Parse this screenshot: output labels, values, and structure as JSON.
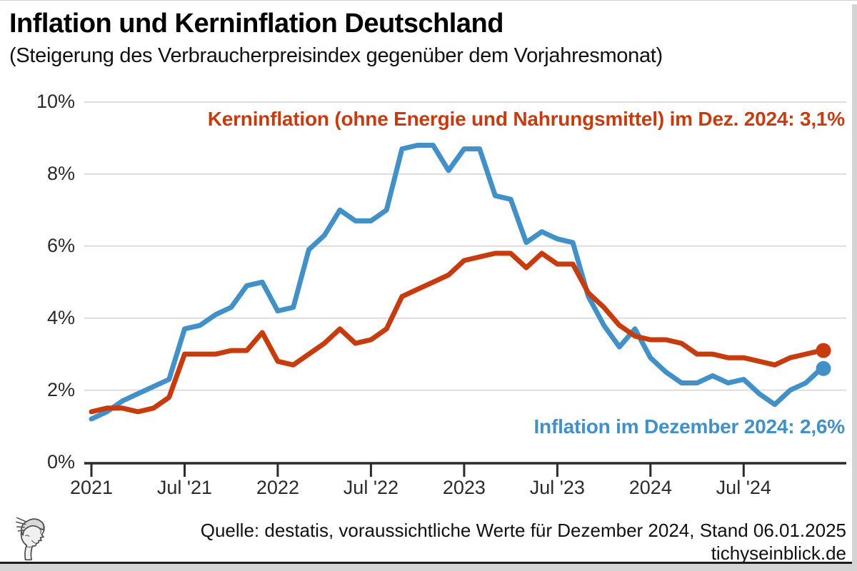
{
  "title": "Inflation und Kerninflation Deutschland",
  "subtitle": "(Steigerung des Verbraucherpreisindex gegenüber dem Vorjahresmonat)",
  "annotations": {
    "core": {
      "text": "Kerninflation (ohne Energie und Nahrungsmittel) im Dez. 2024: 3,1%"
    },
    "headline": {
      "text": "Inflation im Dezember 2024: 2,6%"
    }
  },
  "footer": {
    "source": "Quelle: destatis, voraussichtliche Werte für Dezember 2024, Stand 06.01.2025",
    "site": "tichyseinblick.de"
  },
  "colors": {
    "inflation_blue": "#4190c8",
    "core_red": "#c73c0f",
    "gridline": "#dcdcdc",
    "axis": "#2b2b2b"
  },
  "chart_data": {
    "type": "line",
    "title": "Inflation und Kerninflation Deutschland",
    "subtitle": "(Steigerung des Verbraucherpreisindex gegenüber dem Vorjahresmonat)",
    "x_start": "Jan 2021",
    "x_freq": "monthly",
    "x_ticks": [
      {
        "label": "2021",
        "month_index": 0
      },
      {
        "label": "Jul '21",
        "month_index": 6
      },
      {
        "label": "2022",
        "month_index": 12
      },
      {
        "label": "Jul '22",
        "month_index": 18
      },
      {
        "label": "2023",
        "month_index": 24
      },
      {
        "label": "Jul '23",
        "month_index": 30
      },
      {
        "label": "2024",
        "month_index": 36
      },
      {
        "label": "Jul '24",
        "month_index": 42
      }
    ],
    "y_ticks": [
      0,
      2,
      4,
      6,
      8,
      10
    ],
    "y_tick_suffix": "%",
    "ylim": [
      0,
      10.4
    ],
    "grid": "horizontal",
    "legend": "none",
    "series": [
      {
        "name": "Inflation",
        "color": "#4190c8",
        "end_dot": true,
        "last_value_label": "2,6%",
        "values": [
          1.2,
          1.4,
          1.7,
          1.9,
          2.1,
          2.3,
          3.7,
          3.8,
          4.1,
          4.3,
          4.9,
          5.0,
          4.2,
          4.3,
          5.9,
          6.3,
          7.0,
          6.7,
          6.7,
          7.0,
          8.7,
          8.8,
          8.8,
          8.1,
          8.7,
          8.7,
          7.4,
          7.3,
          6.1,
          6.4,
          6.2,
          6.1,
          4.6,
          3.8,
          3.2,
          3.7,
          2.9,
          2.5,
          2.2,
          2.2,
          2.4,
          2.2,
          2.3,
          1.9,
          1.6,
          2.0,
          2.2,
          2.6
        ]
      },
      {
        "name": "Kerninflation (ohne Energie und Nahrungsmittel)",
        "color": "#c73c0f",
        "end_dot": true,
        "last_value_label": "3,1%",
        "values": [
          1.4,
          1.5,
          1.5,
          1.4,
          1.5,
          1.8,
          3.0,
          3.0,
          3.0,
          3.1,
          3.1,
          3.6,
          2.8,
          2.7,
          3.0,
          3.3,
          3.7,
          3.3,
          3.4,
          3.7,
          4.6,
          4.8,
          5.0,
          5.2,
          5.6,
          5.7,
          5.8,
          5.8,
          5.4,
          5.8,
          5.5,
          5.5,
          4.7,
          4.3,
          3.8,
          3.5,
          3.4,
          3.4,
          3.3,
          3.0,
          3.0,
          2.9,
          2.9,
          2.8,
          2.7,
          2.9,
          3.0,
          3.1
        ]
      }
    ]
  }
}
